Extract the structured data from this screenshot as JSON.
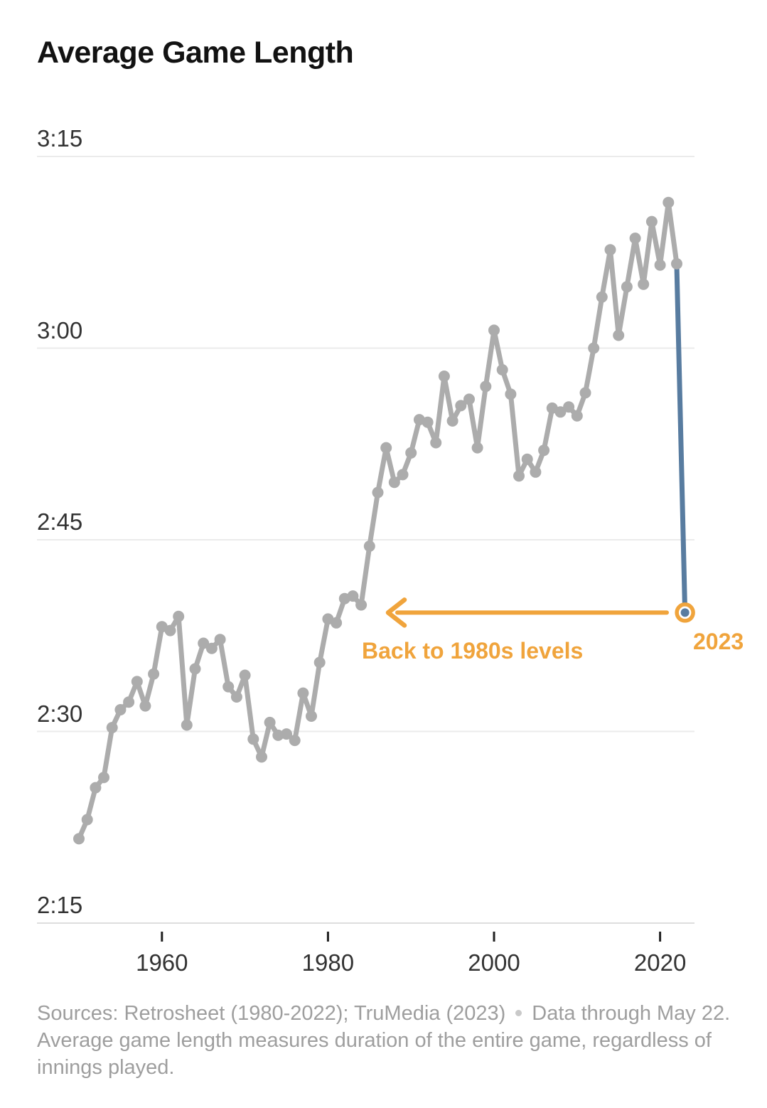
{
  "title": "Average Game Length",
  "annotation": {
    "arrow_label": "Back to 1980s levels",
    "year_label": "2023"
  },
  "footer": {
    "sources": "Sources: Retrosheet (1980-2022); TruMedia (2023)",
    "note": "Data through May 22.",
    "description": "Average game length measures duration of the entire game, regardless of innings played."
  },
  "colors": {
    "accent_orange": "#F0A43C",
    "accent_blue": "#587CA0",
    "line_gray": "#ACACAC",
    "grid_gray": "#EBEBEB",
    "axis_line_gray": "#DEDEDE",
    "tick_dark": "#222222",
    "text_dark": "#333333",
    "title_black": "#121212",
    "footer_gray": "#9E9E9E"
  },
  "chart_data": {
    "type": "line",
    "title": "Average Game Length",
    "xlabel": "",
    "ylabel": "",
    "grid": "horizontal-only",
    "legend": "none",
    "y_axis": {
      "tick_labels": [
        "3:15",
        "3:00",
        "2:45",
        "2:30",
        "2:15"
      ],
      "tick_minutes": [
        195,
        180,
        165,
        150,
        135
      ],
      "ylim_minutes": [
        131,
        200
      ]
    },
    "x_axis": {
      "tick_labels": [
        "1960",
        "1980",
        "2000",
        "2020"
      ],
      "tick_years": [
        1960,
        1980,
        2000,
        2020
      ],
      "xlim_years": [
        1950,
        2023
      ]
    },
    "series": [
      {
        "name": "Average game length by season",
        "years": [
          1950,
          1951,
          1952,
          1953,
          1954,
          1955,
          1956,
          1957,
          1958,
          1959,
          1960,
          1961,
          1962,
          1963,
          1964,
          1965,
          1966,
          1967,
          1968,
          1969,
          1970,
          1971,
          1972,
          1973,
          1974,
          1975,
          1976,
          1977,
          1978,
          1979,
          1980,
          1981,
          1982,
          1983,
          1984,
          1985,
          1986,
          1987,
          1988,
          1989,
          1990,
          1991,
          1992,
          1993,
          1994,
          1995,
          1996,
          1997,
          1998,
          1999,
          2000,
          2001,
          2002,
          2003,
          2004,
          2005,
          2006,
          2007,
          2008,
          2009,
          2010,
          2011,
          2012,
          2013,
          2014,
          2015,
          2016,
          2017,
          2018,
          2019,
          2020,
          2021,
          2022
        ],
        "values_minutes": [
          141.6,
          143.1,
          145.6,
          146.4,
          150.3,
          151.7,
          152.3,
          153.9,
          152.0,
          154.5,
          158.2,
          157.9,
          159.0,
          150.5,
          154.9,
          156.9,
          156.5,
          157.2,
          153.5,
          152.7,
          154.4,
          149.4,
          148.0,
          150.7,
          149.7,
          149.8,
          149.3,
          153.0,
          151.2,
          155.4,
          158.8,
          158.5,
          160.4,
          160.6,
          159.9,
          164.5,
          168.7,
          172.2,
          169.5,
          170.1,
          171.8,
          174.4,
          174.2,
          172.6,
          177.8,
          174.3,
          175.5,
          176.0,
          172.2,
          177.0,
          181.4,
          178.3,
          176.4,
          170.0,
          171.3,
          170.3,
          172.0,
          175.3,
          175.0,
          175.4,
          174.7,
          176.5,
          180.0,
          184.0,
          187.7,
          181.0,
          184.8,
          188.6,
          185.0,
          189.9,
          186.5,
          191.4,
          186.6
        ],
        "values_hmm": [
          "2:22",
          "2:23",
          "2:26",
          "2:26",
          "2:30",
          "2:32",
          "2:32",
          "2:34",
          "2:32",
          "2:35",
          "2:38",
          "2:38",
          "2:39",
          "2:31",
          "2:35",
          "2:37",
          "2:37",
          "2:37",
          "2:34",
          "2:33",
          "2:34",
          "2:29",
          "2:28",
          "2:31",
          "2:30",
          "2:30",
          "2:29",
          "2:33",
          "2:31",
          "2:35",
          "2:39",
          "2:39",
          "2:40",
          "2:41",
          "2:40",
          "2:45",
          "2:49",
          "2:52",
          "2:50",
          "2:50",
          "2:52",
          "2:54",
          "2:54",
          "2:53",
          "2:58",
          "2:54",
          "2:56",
          "2:56",
          "2:52",
          "2:57",
          "3:01",
          "2:58",
          "2:56",
          "2:50",
          "2:51",
          "2:50",
          "2:52",
          "2:55",
          "2:55",
          "2:55",
          "2:55",
          "2:57",
          "3:00",
          "3:04",
          "3:08",
          "3:01",
          "3:05",
          "3:09",
          "3:05",
          "3:10",
          "3:07",
          "3:11",
          "3:07"
        ]
      }
    ],
    "highlight_point": {
      "year": 2023,
      "value_minutes": 159.3,
      "value_hmm": "2:39",
      "label": "2023",
      "annotation": "Back to 1980s levels"
    }
  }
}
